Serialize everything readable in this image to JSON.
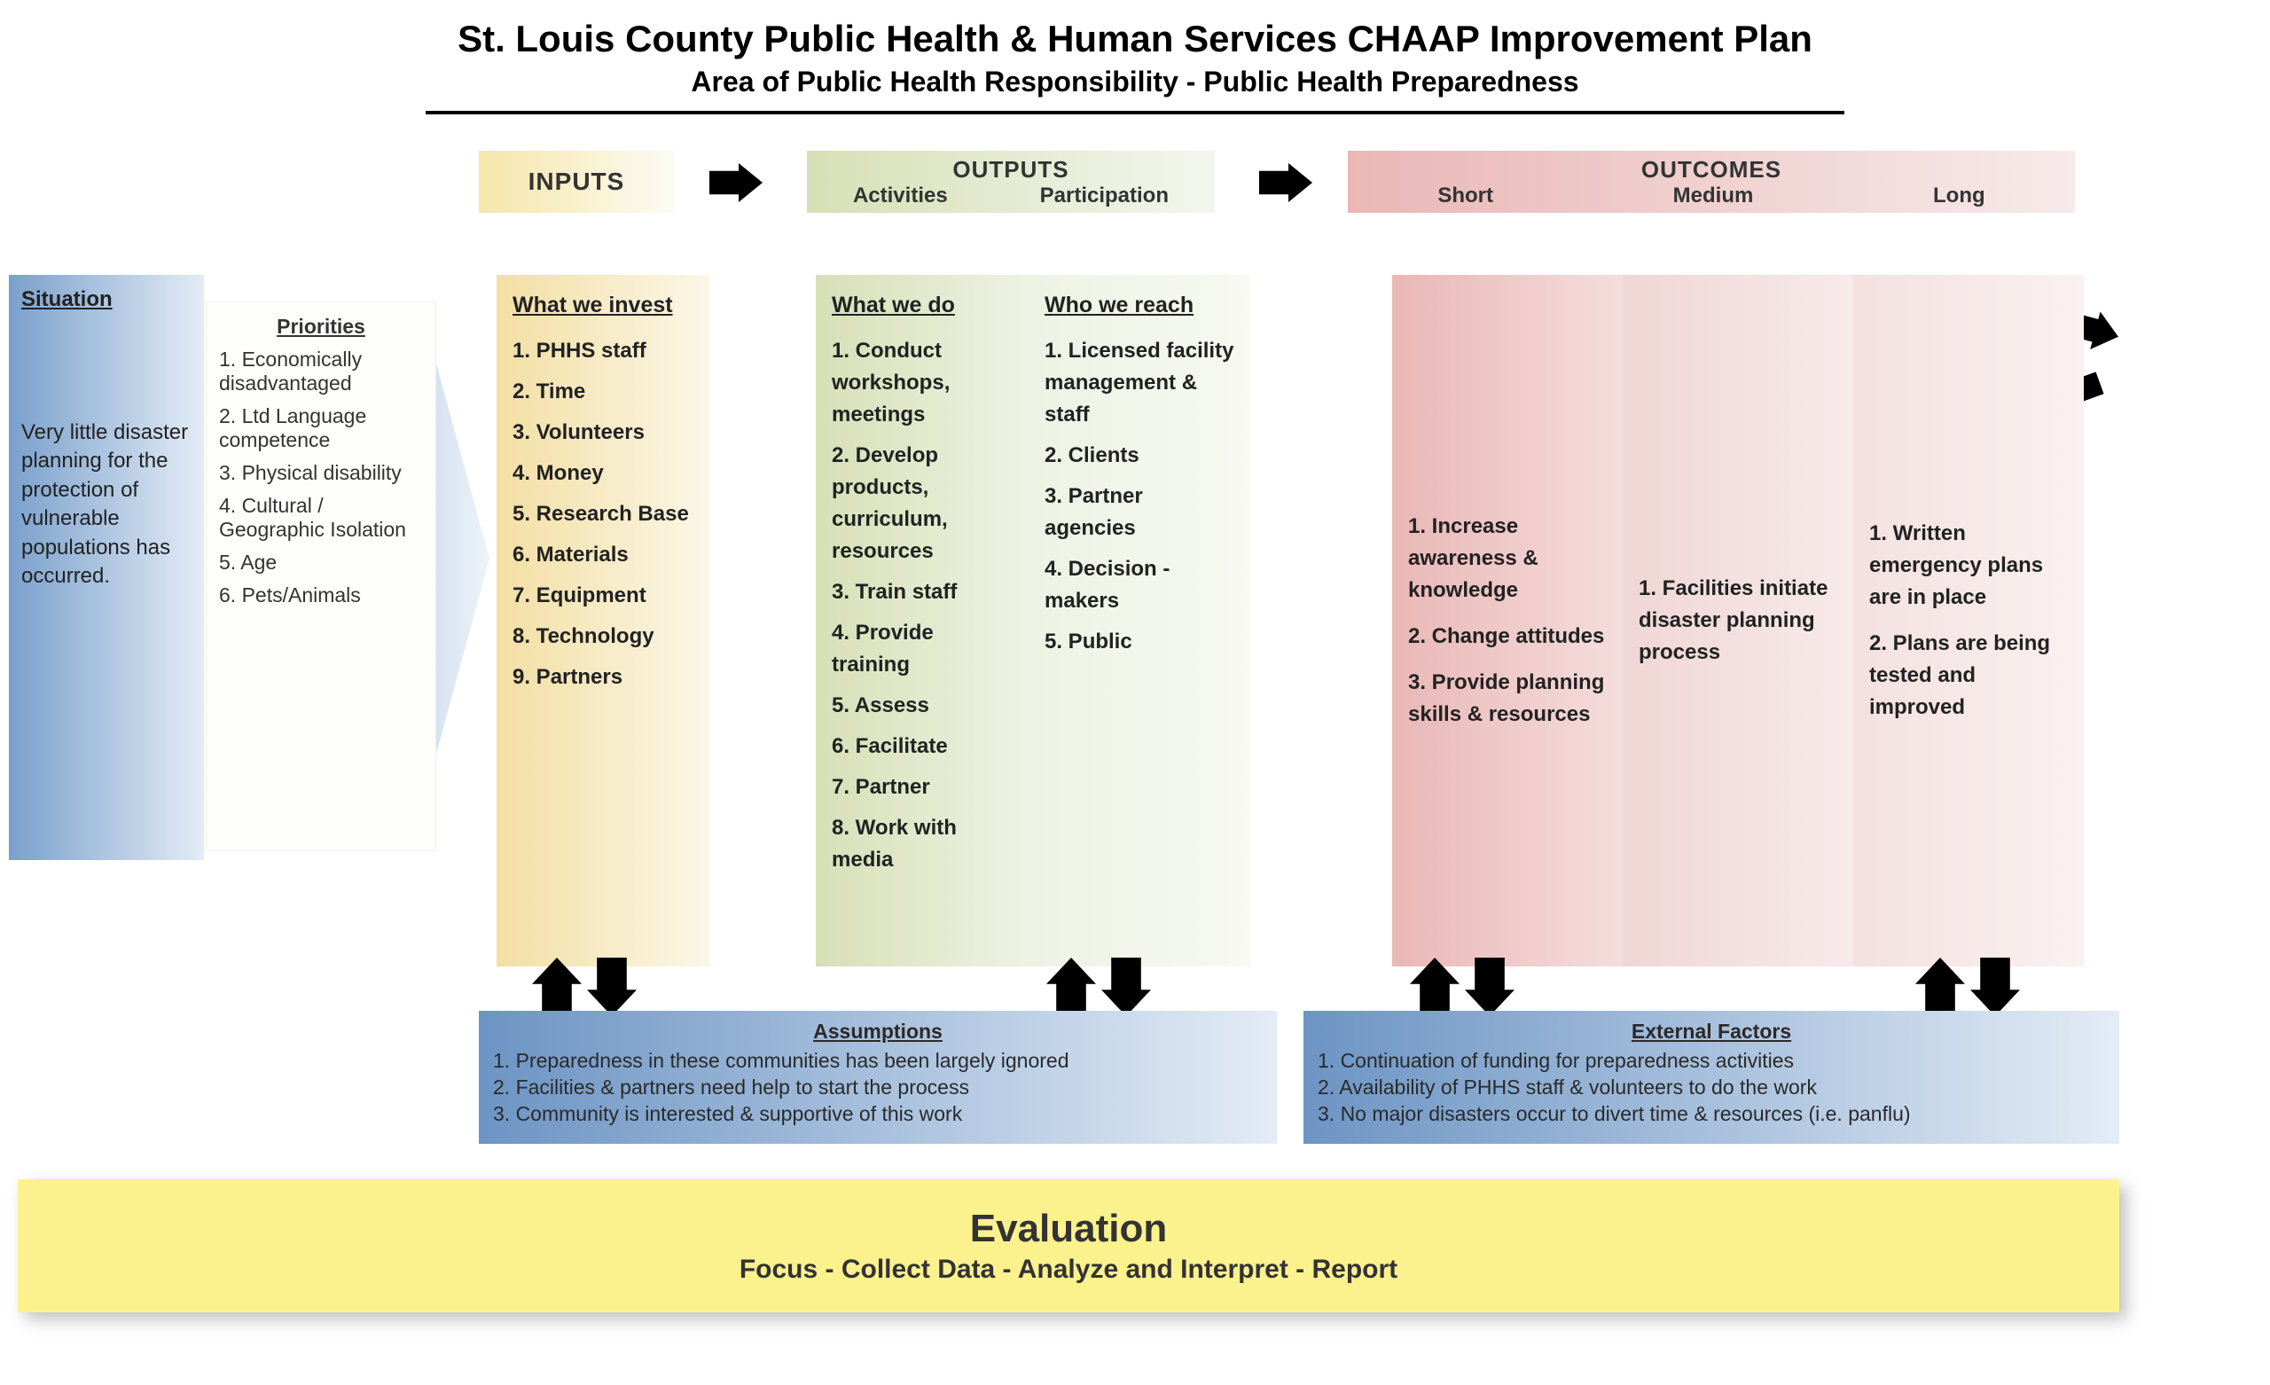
{
  "title": "St. Louis County Public Health & Human Services CHAAP Improvement Plan",
  "subtitle": "Area of Public Health Responsibility - Public Health Preparedness",
  "headers": {
    "inputs": "INPUTS",
    "outputs": "OUTPUTS",
    "outputs_activities": "Activities",
    "outputs_participation": "Participation",
    "outcomes": "OUTCOMES",
    "outcomes_short": "Short",
    "outcomes_medium": "Medium",
    "outcomes_long": "Long"
  },
  "situation": {
    "title": "Situation",
    "text": "Very little disaster planning for the protection of vulnerable populations has occurred."
  },
  "priorities": {
    "title": "Priorities",
    "items": [
      "1. Economically disadvantaged",
      "2. Ltd Language competence",
      "3. Physical disability",
      "4. Cultural / Geographic Isolation",
      "5. Age",
      "6. Pets/Animals"
    ]
  },
  "inputs": {
    "title": "What we invest",
    "items": [
      "1. PHHS staff",
      "2. Time",
      "3. Volunteers",
      "4. Money",
      "5. Research Base",
      "6. Materials",
      "7. Equipment",
      "8. Technology",
      "9. Partners"
    ]
  },
  "activities": {
    "title": "What we do",
    "items": [
      "1. Conduct workshops, meetings",
      "2. Develop products, curriculum, resources",
      "3. Train staff",
      "4. Provide training",
      "5. Assess",
      "6. Facilitate",
      "7. Partner",
      "8. Work with media"
    ]
  },
  "participation": {
    "title": "Who we reach",
    "items": [
      "1. Licensed facility management & staff",
      "2. Clients",
      "3. Partner agencies",
      "4. Decision - makers",
      "5. Public"
    ]
  },
  "short": {
    "items": [
      "1. Increase awareness & knowledge",
      "2. Change attitudes",
      "3. Provide planning skills & resources"
    ]
  },
  "medium": {
    "items": [
      "1. Facilities initiate disaster planning process"
    ]
  },
  "long": {
    "items": [
      "1. Written emergency plans are in place",
      "2. Plans are being tested and improved"
    ]
  },
  "assumptions": {
    "title": "Assumptions",
    "items": [
      "1. Preparedness in these communities has been largely ignored",
      "2. Facilities & partners need help to start the process",
      "3. Community is interested & supportive of this work"
    ]
  },
  "external": {
    "title": "External Factors",
    "items": [
      "1. Continuation of funding for preparedness activities",
      "2. Availability of PHHS staff & volunteers to do the work",
      "3. No major disasters occur to divert time & resources (i.e. panflu)"
    ]
  },
  "evaluation": {
    "title": "Evaluation",
    "subtitle": "Focus - Collect Data - Analyze and Interpret - Report"
  },
  "colors": {
    "inputs_grad": [
      "#f6e6a8",
      "#fcfbf3"
    ],
    "outputs_grad": [
      "#d6e0b6",
      "#f3f6ee"
    ],
    "outcomes_grad": [
      "#e9b7b6",
      "#f7eaea"
    ],
    "blue_grad": [
      "#7aa0cc",
      "#e3ecf6"
    ],
    "eval_bg": "#fbf28e",
    "arrow": "#000000"
  }
}
